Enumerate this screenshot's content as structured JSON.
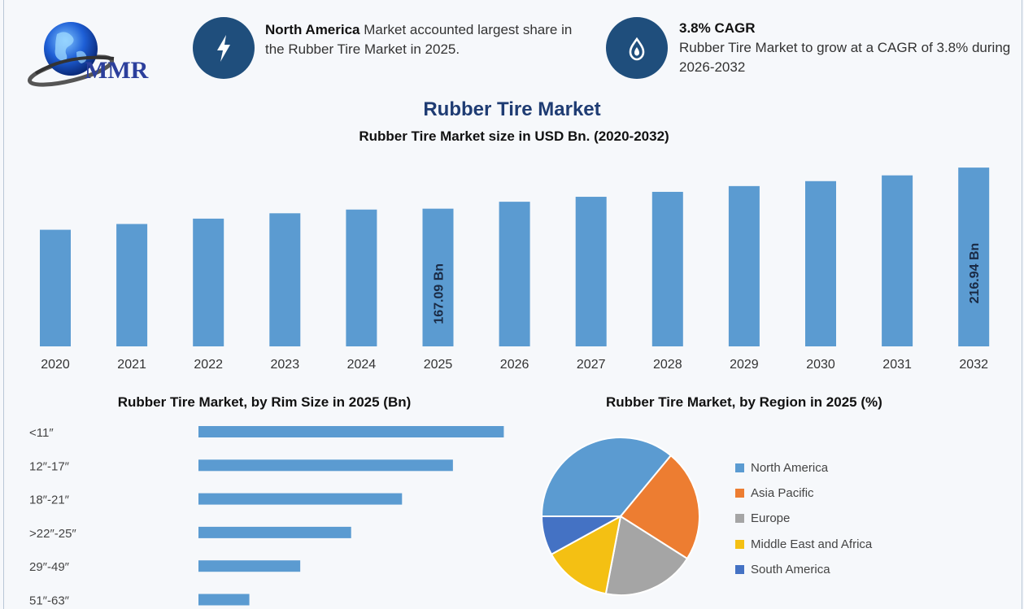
{
  "brand": {
    "logo_text": "MMR"
  },
  "info_cards": [
    {
      "icon": "lightning-icon",
      "bold": "North America",
      "text": " Market accounted largest share in the Rubber Tire Market in 2025."
    },
    {
      "icon": "flame-drop-icon",
      "headline": "3.8% CAGR",
      "text": "Rubber Tire Market to grow at a CAGR of 3.8% during 2026-2032"
    }
  ],
  "main_title": "Rubber Tire Market",
  "colors": {
    "bar": "#5b9bd1",
    "badge": "#1f4e7c",
    "title": "#1f3c73"
  },
  "chart_data": [
    {
      "type": "bar",
      "title": "Rubber Tire Market size in USD Bn. (2020-2032)",
      "categories": [
        "2020",
        "2021",
        "2022",
        "2023",
        "2024",
        "2025",
        "2026",
        "2027",
        "2028",
        "2029",
        "2030",
        "2031",
        "2032"
      ],
      "values": [
        141.5,
        148.5,
        155.0,
        161.5,
        166.0,
        167.09,
        175.5,
        181.5,
        187.5,
        194.5,
        200.5,
        207.5,
        216.94
      ],
      "data_labels": {
        "2025": "167.09 Bn",
        "2032": "216.94 Bn"
      },
      "ylim": [
        0,
        221
      ],
      "grid": false
    },
    {
      "type": "bar",
      "orientation": "horizontal",
      "title": "Rubber Tire Market, by Rim Size in 2025 (Bn)",
      "categories": [
        "<11″",
        "12″-17″",
        "18″-21″",
        ">22″-25″",
        "29″-49″",
        "51″-63″"
      ],
      "values": [
        60,
        50,
        40,
        30,
        20,
        10
      ],
      "xlim": [
        0,
        70
      ]
    },
    {
      "type": "pie",
      "title": "Rubber Tire Market, by Region in 2025 (%)",
      "labels": [
        "North America",
        "Asia Pacific",
        "Europe",
        "Middle East and Africa",
        "South America"
      ],
      "values": [
        36,
        23,
        19,
        14,
        8
      ],
      "colors": [
        "#5b9bd1",
        "#ed7d31",
        "#a5a5a5",
        "#f4c013",
        "#4472c4"
      ],
      "legend": "right"
    }
  ]
}
